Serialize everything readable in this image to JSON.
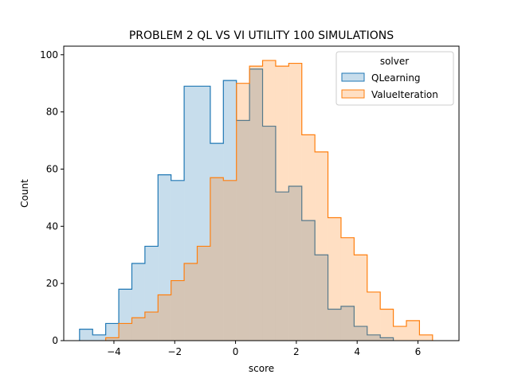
{
  "chart_data": {
    "type": "histogram",
    "title": "PROBLEM 2 QL VS VI UTILITY 100 SIMULATIONS",
    "xlabel": "score",
    "ylabel": "Count",
    "xlim": [
      -5.65,
      7.35
    ],
    "ylim": [
      0,
      103
    ],
    "xticks": [
      -4,
      -2,
      0,
      2,
      4,
      6
    ],
    "yticks": [
      0,
      20,
      40,
      60,
      80,
      100
    ],
    "grid": false,
    "legend": {
      "title": "solver",
      "placement": "top-right"
    },
    "bin_edges": [
      -5.13,
      -4.7,
      -4.27,
      -3.84,
      -3.41,
      -2.98,
      -2.55,
      -2.12,
      -1.69,
      -1.26,
      -0.83,
      -0.4,
      0.03,
      0.46,
      0.89,
      1.32,
      1.75,
      2.18,
      2.61,
      3.04,
      3.47,
      3.9,
      4.33,
      4.76,
      5.19,
      5.62,
      6.05,
      6.48,
      6.91
    ],
    "series": [
      {
        "name": "QLearning",
        "color": "#1f77b4",
        "values": [
          4,
          2,
          6,
          18,
          27,
          33,
          58,
          56,
          89,
          89,
          69,
          91,
          77,
          95,
          75,
          52,
          54,
          42,
          30,
          11,
          12,
          5,
          2,
          1,
          0,
          0,
          0,
          0
        ]
      },
      {
        "name": "ValueIteration",
        "color": "#ff7f0e",
        "values": [
          0,
          0,
          1,
          6,
          8,
          10,
          16,
          21,
          27,
          33,
          57,
          56,
          90,
          96,
          98,
          96,
          97,
          72,
          66,
          43,
          36,
          30,
          17,
          11,
          5,
          7,
          2,
          0
        ]
      }
    ]
  }
}
